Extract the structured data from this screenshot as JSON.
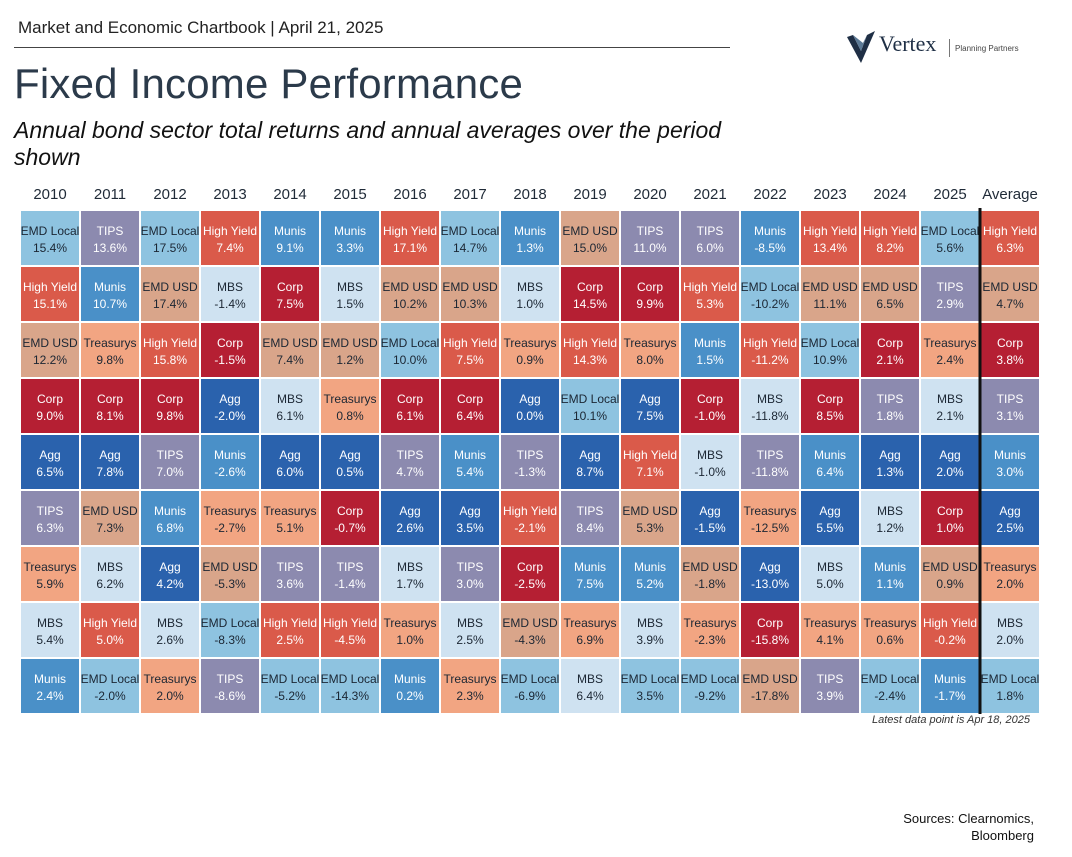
{
  "header": {
    "chartbook": "Market and Economic Chartbook | April 21, 2025",
    "title": "Fixed Income Performance",
    "subtitle": "Annual bond sector total returns and annual averages over the period shown"
  },
  "logo": {
    "word": "Vertex",
    "tagline": "Planning Partners"
  },
  "footnote": "Latest data point is Apr 18, 2025",
  "sources": {
    "line1": "Sources: Clearnomics,",
    "line2": "Bloomberg"
  },
  "colors": {
    "EMD Local": "#8ec3e0",
    "TIPS": "#8c8aaf",
    "High Yield": "#da5a4a",
    "Munis": "#4a90c8",
    "EMD USD": "#d9a58a",
    "MBS": "#cfe2f1",
    "Corp": "#b51f33",
    "Agg": "#2a62ad",
    "Treasurys": "#f2a582"
  },
  "chart_data": {
    "type": "table",
    "columns": [
      "2010",
      "2011",
      "2012",
      "2013",
      "2014",
      "2015",
      "2016",
      "2017",
      "2018",
      "2019",
      "2020",
      "2021",
      "2022",
      "2023",
      "2024",
      "2025",
      "Average"
    ],
    "cells": [
      [
        [
          "EMD Local",
          "15.4%"
        ],
        [
          "High Yield",
          "15.1%"
        ],
        [
          "EMD USD",
          "12.2%"
        ],
        [
          "Corp",
          "9.0%"
        ],
        [
          "Agg",
          "6.5%"
        ],
        [
          "TIPS",
          "6.3%"
        ],
        [
          "Treasurys",
          "5.9%"
        ],
        [
          "MBS",
          "5.4%"
        ],
        [
          "Munis",
          "2.4%"
        ]
      ],
      [
        [
          "TIPS",
          "13.6%"
        ],
        [
          "Munis",
          "10.7%"
        ],
        [
          "Treasurys",
          "9.8%"
        ],
        [
          "Corp",
          "8.1%"
        ],
        [
          "Agg",
          "7.8%"
        ],
        [
          "EMD USD",
          "7.3%"
        ],
        [
          "MBS",
          "6.2%"
        ],
        [
          "High Yield",
          "5.0%"
        ],
        [
          "EMD Local",
          "-2.0%"
        ]
      ],
      [
        [
          "EMD Local",
          "17.5%"
        ],
        [
          "EMD USD",
          "17.4%"
        ],
        [
          "High Yield",
          "15.8%"
        ],
        [
          "Corp",
          "9.8%"
        ],
        [
          "TIPS",
          "7.0%"
        ],
        [
          "Munis",
          "6.8%"
        ],
        [
          "Agg",
          "4.2%"
        ],
        [
          "MBS",
          "2.6%"
        ],
        [
          "Treasurys",
          "2.0%"
        ]
      ],
      [
        [
          "High Yield",
          "7.4%"
        ],
        [
          "MBS",
          "-1.4%"
        ],
        [
          "Corp",
          "-1.5%"
        ],
        [
          "Agg",
          "-2.0%"
        ],
        [
          "Munis",
          "-2.6%"
        ],
        [
          "Treasurys",
          "-2.7%"
        ],
        [
          "EMD USD",
          "-5.3%"
        ],
        [
          "EMD Local",
          "-8.3%"
        ],
        [
          "TIPS",
          "-8.6%"
        ]
      ],
      [
        [
          "Munis",
          "9.1%"
        ],
        [
          "Corp",
          "7.5%"
        ],
        [
          "EMD USD",
          "7.4%"
        ],
        [
          "MBS",
          "6.1%"
        ],
        [
          "Agg",
          "6.0%"
        ],
        [
          "Treasurys",
          "5.1%"
        ],
        [
          "TIPS",
          "3.6%"
        ],
        [
          "High Yield",
          "2.5%"
        ],
        [
          "EMD Local",
          "-5.2%"
        ]
      ],
      [
        [
          "Munis",
          "3.3%"
        ],
        [
          "MBS",
          "1.5%"
        ],
        [
          "EMD USD",
          "1.2%"
        ],
        [
          "Treasurys",
          "0.8%"
        ],
        [
          "Agg",
          "0.5%"
        ],
        [
          "Corp",
          "-0.7%"
        ],
        [
          "TIPS",
          "-1.4%"
        ],
        [
          "High Yield",
          "-4.5%"
        ],
        [
          "EMD Local",
          "-14.3%"
        ]
      ],
      [
        [
          "High Yield",
          "17.1%"
        ],
        [
          "EMD USD",
          "10.2%"
        ],
        [
          "EMD Local",
          "10.0%"
        ],
        [
          "Corp",
          "6.1%"
        ],
        [
          "TIPS",
          "4.7%"
        ],
        [
          "Agg",
          "2.6%"
        ],
        [
          "MBS",
          "1.7%"
        ],
        [
          "Treasurys",
          "1.0%"
        ],
        [
          "Munis",
          "0.2%"
        ]
      ],
      [
        [
          "EMD Local",
          "14.7%"
        ],
        [
          "EMD USD",
          "10.3%"
        ],
        [
          "High Yield",
          "7.5%"
        ],
        [
          "Corp",
          "6.4%"
        ],
        [
          "Munis",
          "5.4%"
        ],
        [
          "Agg",
          "3.5%"
        ],
        [
          "TIPS",
          "3.0%"
        ],
        [
          "MBS",
          "2.5%"
        ],
        [
          "Treasurys",
          "2.3%"
        ]
      ],
      [
        [
          "Munis",
          "1.3%"
        ],
        [
          "MBS",
          "1.0%"
        ],
        [
          "Treasurys",
          "0.9%"
        ],
        [
          "Agg",
          "0.0%"
        ],
        [
          "TIPS",
          "-1.3%"
        ],
        [
          "High Yield",
          "-2.1%"
        ],
        [
          "Corp",
          "-2.5%"
        ],
        [
          "EMD USD",
          "-4.3%"
        ],
        [
          "EMD Local",
          "-6.9%"
        ]
      ],
      [
        [
          "EMD USD",
          "15.0%"
        ],
        [
          "Corp",
          "14.5%"
        ],
        [
          "High Yield",
          "14.3%"
        ],
        [
          "EMD Local",
          "10.1%"
        ],
        [
          "Agg",
          "8.7%"
        ],
        [
          "TIPS",
          "8.4%"
        ],
        [
          "Munis",
          "7.5%"
        ],
        [
          "Treasurys",
          "6.9%"
        ],
        [
          "MBS",
          "6.4%"
        ]
      ],
      [
        [
          "TIPS",
          "11.0%"
        ],
        [
          "Corp",
          "9.9%"
        ],
        [
          "Treasurys",
          "8.0%"
        ],
        [
          "Agg",
          "7.5%"
        ],
        [
          "High Yield",
          "7.1%"
        ],
        [
          "EMD USD",
          "5.3%"
        ],
        [
          "Munis",
          "5.2%"
        ],
        [
          "MBS",
          "3.9%"
        ],
        [
          "EMD Local",
          "3.5%"
        ]
      ],
      [
        [
          "TIPS",
          "6.0%"
        ],
        [
          "High Yield",
          "5.3%"
        ],
        [
          "Munis",
          "1.5%"
        ],
        [
          "Corp",
          "-1.0%"
        ],
        [
          "MBS",
          "-1.0%"
        ],
        [
          "Agg",
          "-1.5%"
        ],
        [
          "EMD USD",
          "-1.8%"
        ],
        [
          "Treasurys",
          "-2.3%"
        ],
        [
          "EMD Local",
          "-9.2%"
        ]
      ],
      [
        [
          "Munis",
          "-8.5%"
        ],
        [
          "EMD Local",
          "-10.2%"
        ],
        [
          "High Yield",
          "-11.2%"
        ],
        [
          "MBS",
          "-11.8%"
        ],
        [
          "TIPS",
          "-11.8%"
        ],
        [
          "Treasurys",
          "-12.5%"
        ],
        [
          "Agg",
          "-13.0%"
        ],
        [
          "Corp",
          "-15.8%"
        ],
        [
          "EMD USD",
          "-17.8%"
        ]
      ],
      [
        [
          "High Yield",
          "13.4%"
        ],
        [
          "EMD USD",
          "11.1%"
        ],
        [
          "EMD Local",
          "10.9%"
        ],
        [
          "Corp",
          "8.5%"
        ],
        [
          "Munis",
          "6.4%"
        ],
        [
          "Agg",
          "5.5%"
        ],
        [
          "MBS",
          "5.0%"
        ],
        [
          "Treasurys",
          "4.1%"
        ],
        [
          "TIPS",
          "3.9%"
        ]
      ],
      [
        [
          "High Yield",
          "8.2%"
        ],
        [
          "EMD USD",
          "6.5%"
        ],
        [
          "Corp",
          "2.1%"
        ],
        [
          "TIPS",
          "1.8%"
        ],
        [
          "Agg",
          "1.3%"
        ],
        [
          "MBS",
          "1.2%"
        ],
        [
          "Munis",
          "1.1%"
        ],
        [
          "Treasurys",
          "0.6%"
        ],
        [
          "EMD Local",
          "-2.4%"
        ]
      ],
      [
        [
          "EMD Local",
          "5.6%"
        ],
        [
          "TIPS",
          "2.9%"
        ],
        [
          "Treasurys",
          "2.4%"
        ],
        [
          "MBS",
          "2.1%"
        ],
        [
          "Agg",
          "2.0%"
        ],
        [
          "Corp",
          "1.0%"
        ],
        [
          "EMD USD",
          "0.9%"
        ],
        [
          "High Yield",
          "-0.2%"
        ],
        [
          "Munis",
          "-1.7%"
        ]
      ],
      [
        [
          "High Yield",
          "6.3%"
        ],
        [
          "EMD USD",
          "4.7%"
        ],
        [
          "Corp",
          "3.8%"
        ],
        [
          "TIPS",
          "3.1%"
        ],
        [
          "Munis",
          "3.0%"
        ],
        [
          "Agg",
          "2.5%"
        ],
        [
          "Treasurys",
          "2.0%"
        ],
        [
          "MBS",
          "2.0%"
        ],
        [
          "EMD Local",
          "1.8%"
        ]
      ]
    ]
  }
}
